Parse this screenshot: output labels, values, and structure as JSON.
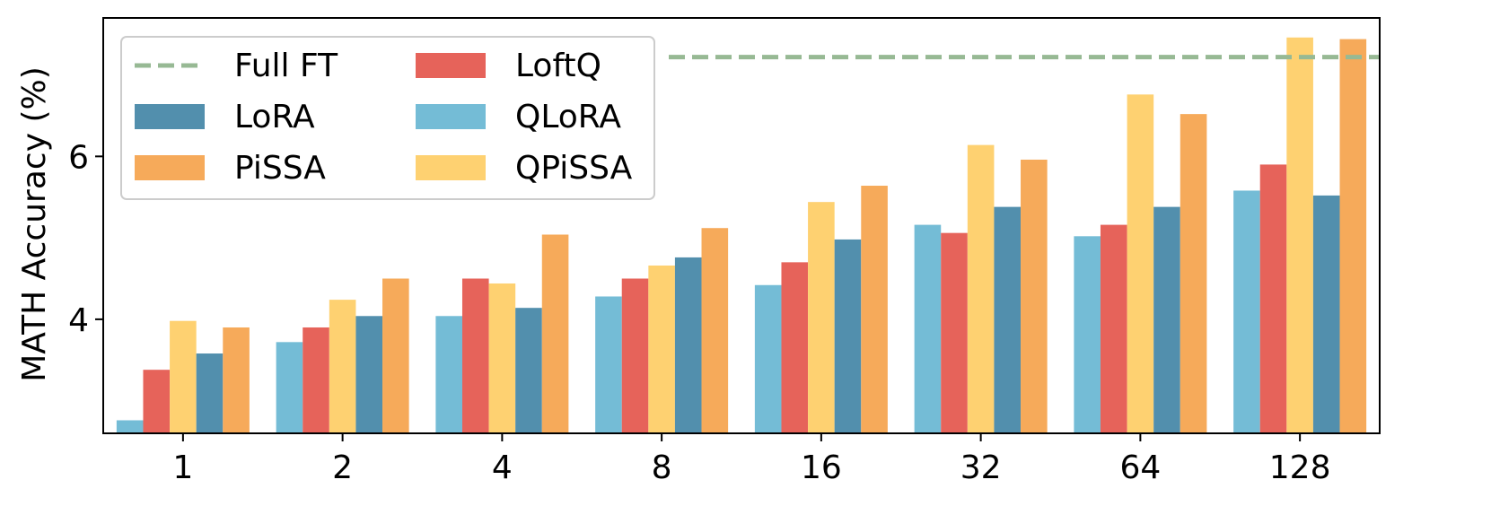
{
  "chart_data": {
    "type": "bar",
    "title": "",
    "xlabel": "",
    "ylabel": "MATH Accuracy (%)",
    "categories": [
      "1",
      "2",
      "4",
      "8",
      "16",
      "32",
      "64",
      "128"
    ],
    "ylim": [
      2.6,
      7.7
    ],
    "yticks": [
      4,
      6
    ],
    "grid": false,
    "legend_position": "top-left",
    "reference_lines": [
      {
        "name": "Full FT",
        "value": 7.22,
        "color": "#97b994",
        "style": "dashed"
      }
    ],
    "series": [
      {
        "name": "QLoRA",
        "color": "#74bcd6",
        "values": [
          2.76,
          3.72,
          4.04,
          4.28,
          4.42,
          5.16,
          5.02,
          5.58
        ]
      },
      {
        "name": "LoftQ",
        "color": "#e6635a",
        "values": [
          3.38,
          3.9,
          4.5,
          4.5,
          4.7,
          5.06,
          5.16,
          5.9
        ]
      },
      {
        "name": "QPiSSA",
        "color": "#fed171",
        "values": [
          3.98,
          4.24,
          4.44,
          4.66,
          5.44,
          6.14,
          6.76,
          7.46
        ]
      },
      {
        "name": "LoRA",
        "color": "#528fad",
        "values": [
          3.58,
          4.04,
          4.14,
          4.76,
          4.98,
          5.38,
          5.38,
          5.52
        ]
      },
      {
        "name": "PiSSA",
        "color": "#f6aa5a",
        "values": [
          3.9,
          4.5,
          5.04,
          5.12,
          5.64,
          5.96,
          6.52,
          7.44
        ]
      }
    ],
    "legend_entries": [
      "Full FT",
      "LoftQ",
      "LoRA",
      "QLoRA",
      "PiSSA",
      "QPiSSA"
    ]
  }
}
